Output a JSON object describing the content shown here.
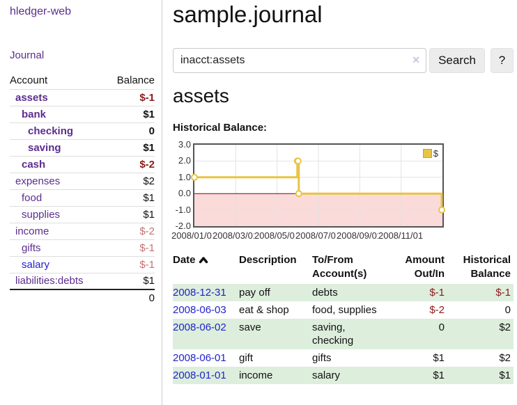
{
  "sidebar": {
    "app_title": "hledger-web",
    "journal_link": "Journal",
    "accounts": {
      "header_account": "Account",
      "header_balance": "Balance",
      "rows": [
        {
          "name": "assets",
          "balance": "$-1"
        },
        {
          "name": "bank",
          "balance": "$1"
        },
        {
          "name": "checking",
          "balance": "0"
        },
        {
          "name": "saving",
          "balance": "$1"
        },
        {
          "name": "cash",
          "balance": "$-2"
        },
        {
          "name": "expenses",
          "balance": "$2"
        },
        {
          "name": "food",
          "balance": "$1"
        },
        {
          "name": "supplies",
          "balance": "$1"
        },
        {
          "name": "income",
          "balance": "$-2"
        },
        {
          "name": "gifts",
          "balance": "$-1"
        },
        {
          "name": "salary",
          "balance": "$-1"
        },
        {
          "name": "liabilities:debts",
          "balance": "$1"
        }
      ],
      "total": "0"
    }
  },
  "main": {
    "title": "sample.journal",
    "search": {
      "value": "inacct:assets",
      "clear_icon": "✕",
      "search_button": "Search",
      "help_button": "?"
    },
    "account_heading": "assets",
    "chart_label": "Historical Balance:"
  },
  "chart_data": {
    "type": "line",
    "style": "step",
    "title": "Historical Balance",
    "legend_label": "$",
    "legend_position": "top-right",
    "grid": true,
    "ylim": [
      -2.0,
      3.0
    ],
    "yticks": [
      "3.0",
      "2.0",
      "1.0",
      "0.0",
      "-1.0",
      "-2.0"
    ],
    "xtick_labels": [
      "2008/01/01",
      "2008/03/01",
      "2008/05/01",
      "2008/07/01",
      "2008/09/01",
      "2008/11/01"
    ],
    "xrange": [
      "2008-01-01",
      "2009-01-01"
    ],
    "series": [
      {
        "name": "$",
        "color": "#e9c344",
        "points": [
          {
            "date": "2008-01-01",
            "value": 1
          },
          {
            "date": "2008-06-01",
            "value": 2
          },
          {
            "date": "2008-06-02",
            "value": 2
          },
          {
            "date": "2008-06-03",
            "value": 0
          },
          {
            "date": "2008-12-31",
            "value": -1
          }
        ]
      }
    ],
    "negative_region_color": "#fbdada",
    "zero_line_color": "#8b0000"
  },
  "register": {
    "headers": {
      "date": "Date",
      "description": "Description",
      "accounts": "To/From Account(s)",
      "amount": "Amount Out/In",
      "balance": "Historical Balance"
    },
    "rows": [
      {
        "date": "2008-12-31",
        "description": "pay off",
        "accounts": "debts",
        "amount": "$-1",
        "balance": "$-1"
      },
      {
        "date": "2008-06-03",
        "description": "eat & shop",
        "accounts": "food, supplies",
        "amount": "$-2",
        "balance": "0"
      },
      {
        "date": "2008-06-02",
        "description": "save",
        "accounts": "saving, checking",
        "amount": "0",
        "balance": "$2"
      },
      {
        "date": "2008-06-01",
        "description": "gift",
        "accounts": "gifts",
        "amount": "$1",
        "balance": "$2"
      },
      {
        "date": "2008-01-01",
        "description": "income",
        "accounts": "salary",
        "amount": "$1",
        "balance": "$1"
      }
    ]
  }
}
